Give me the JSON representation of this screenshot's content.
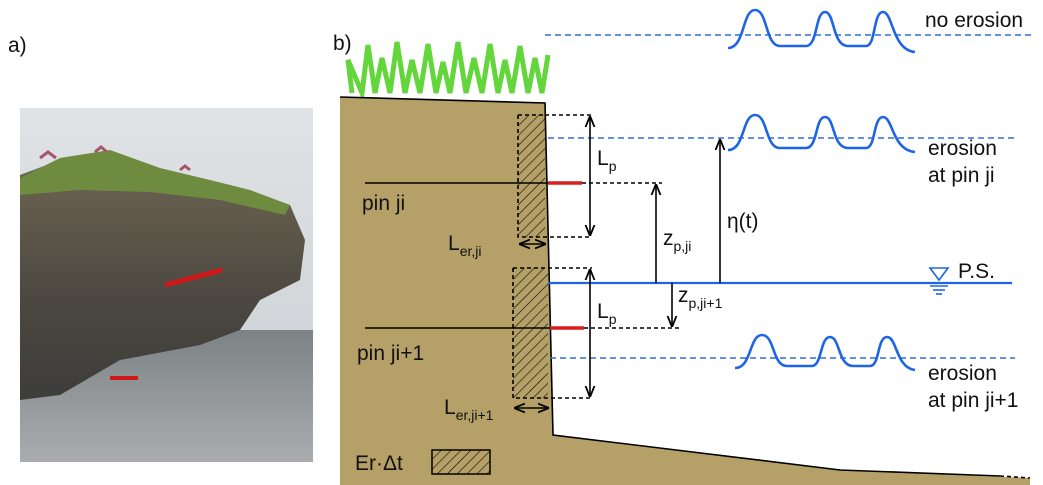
{
  "panel_labels": [
    "a)",
    "b)"
  ],
  "levels": {
    "no_erosion": "no erosion",
    "erosion_ji": [
      "erosion",
      "at pin ji"
    ],
    "erosion_ji1": [
      "erosion",
      "at pin ji+1"
    ],
    "still_water": "P.S."
  },
  "pins": [
    "pin ji",
    "pin ji+1"
  ],
  "symbols": {
    "lp_ji": {
      "main": "L",
      "sub": "p"
    },
    "lp_ji1": {
      "main": "L",
      "sub": "p"
    },
    "ler_ji": {
      "main": "L",
      "sub": "er,ji"
    },
    "ler_ji1": {
      "main": "L",
      "sub": "er,ji+1"
    },
    "zp_ji": {
      "main": "z",
      "sub": "p,ji"
    },
    "zp_ji1": {
      "main": "z",
      "sub": "p,ji+1"
    },
    "eta": "η(t)",
    "er_dt": "Er·Δt"
  }
}
